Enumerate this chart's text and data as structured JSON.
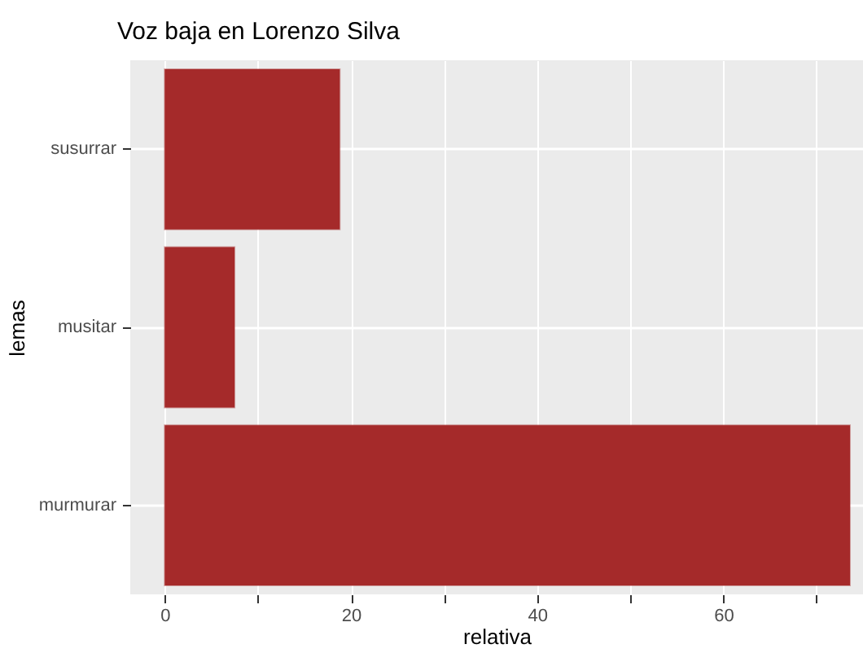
{
  "chart_data": {
    "type": "bar",
    "orientation": "horizontal",
    "title": "Voz baja en Lorenzo Silva",
    "xlabel": "relativa",
    "ylabel": "lemas",
    "categories": [
      "susurrar",
      "musitar",
      "murmurar"
    ],
    "values": [
      18.8,
      7.5,
      73.6
    ],
    "color": "#a52a2a",
    "xlim": [
      -3.7,
      75
    ],
    "xticks": [
      0,
      {
        "value": 10,
        "label": null
      },
      20,
      {
        "value": 30,
        "label": null
      },
      40,
      {
        "value": 50,
        "label": null
      },
      60,
      {
        "value": 70,
        "label": null
      }
    ],
    "grid": true
  }
}
